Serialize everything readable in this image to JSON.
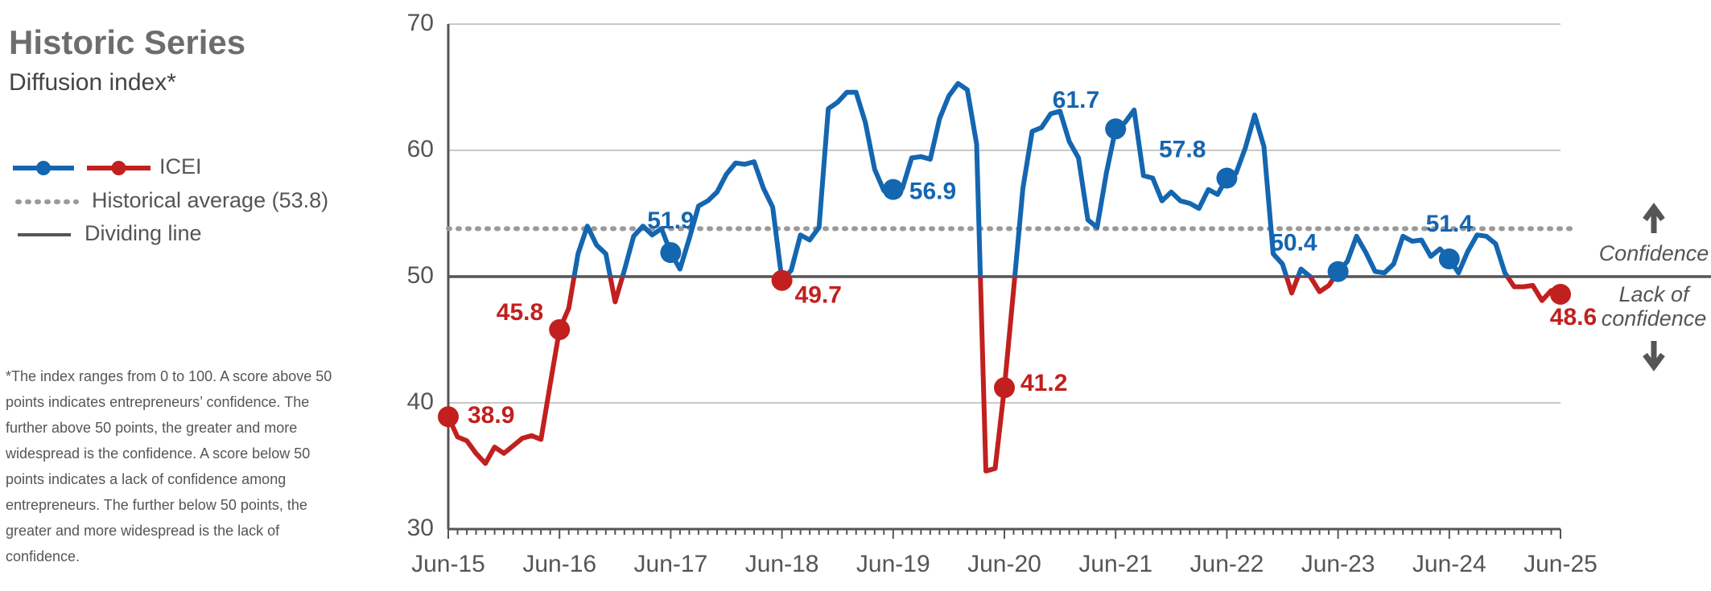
{
  "chart_data": {
    "type": "line",
    "title": "Historic Series",
    "subtitle": "Diffusion index*",
    "footnote": "*The index ranges from 0 to 100. A score above 50 points indicates entrepreneurs’ confidence. The further above 50 points, the greater and more widespread is the confidence. A score below 50 points indicates a lack of confidence among entrepreneurs. The further below 50 points, the greater and more widespread is the lack of confidence.",
    "categories": [
      "Jun-15",
      null,
      null,
      null,
      null,
      null,
      null,
      null,
      null,
      null,
      null,
      null,
      "Jun-16",
      null,
      null,
      null,
      null,
      null,
      null,
      null,
      null,
      null,
      null,
      null,
      "Jun-17",
      null,
      null,
      null,
      null,
      null,
      null,
      null,
      null,
      null,
      null,
      null,
      "Jun-18",
      null,
      null,
      null,
      null,
      null,
      null,
      null,
      null,
      null,
      null,
      null,
      "Jun-19",
      null,
      null,
      null,
      null,
      null,
      null,
      null,
      null,
      null,
      null,
      null,
      "Jun-20",
      null,
      null,
      null,
      null,
      null,
      null,
      null,
      null,
      null,
      null,
      null,
      "Jun-21",
      null,
      null,
      null,
      null,
      null,
      null,
      null,
      null,
      null,
      null,
      null,
      "Jun-22",
      null,
      null,
      null,
      null,
      null,
      null,
      null,
      null,
      null,
      null,
      null,
      "Jun-23",
      null,
      null,
      null,
      null,
      null,
      null,
      null,
      null,
      null,
      null,
      null,
      "Jun-24",
      null,
      null,
      null,
      null,
      null,
      null,
      null,
      null,
      null,
      null,
      null,
      "Jun-25"
    ],
    "series": [
      {
        "name": "ICEI",
        "color": "#1466b0",
        "color_below": "#c1201f",
        "values": [
          38.9,
          37.3,
          37.0,
          36.0,
          35.2,
          36.5,
          36.0,
          36.6,
          37.2,
          37.4,
          37.1,
          41.5,
          45.8,
          47.5,
          51.8,
          54.0,
          52.5,
          51.8,
          48.0,
          50.5,
          53.2,
          54.0,
          53.3,
          53.8,
          51.9,
          50.6,
          53.0,
          55.6,
          56.0,
          56.7,
          58.1,
          59.0,
          58.9,
          59.1,
          57.0,
          55.5,
          49.7,
          50.5,
          53.3,
          52.9,
          53.9,
          63.3,
          63.8,
          64.6,
          64.6,
          62.2,
          58.5,
          56.8,
          56.9,
          57.0,
          59.4,
          59.5,
          59.3,
          62.5,
          64.3,
          65.3,
          64.8,
          60.5,
          34.6,
          34.8,
          41.2,
          49.0,
          57.0,
          61.5,
          61.8,
          62.9,
          63.1,
          60.7,
          59.4,
          54.5,
          53.9,
          58.2,
          61.7,
          62.2,
          63.2,
          58.0,
          57.8,
          56.0,
          56.7,
          56.0,
          55.8,
          55.4,
          56.9,
          56.5,
          57.8,
          58.2,
          60.2,
          62.8,
          60.3,
          51.8,
          51.0,
          48.7,
          50.6,
          50.0,
          48.8,
          49.3,
          50.4,
          51.2,
          53.2,
          51.9,
          50.4,
          50.3,
          51.0,
          53.2,
          52.8,
          52.9,
          51.6,
          52.2,
          51.4,
          50.3,
          52.0,
          53.3,
          53.2,
          52.6,
          50.3,
          49.2,
          49.2,
          49.3,
          48.1,
          48.9,
          48.6
        ]
      }
    ],
    "reference_lines": [
      {
        "name": "Historical average (53.8)",
        "value": 53.8,
        "color": "#9a9a9a",
        "style": "dotted"
      },
      {
        "name": "Dividing line",
        "value": 50,
        "color": "#555555",
        "style": "solid"
      }
    ],
    "annotations": {
      "above": "Confidence",
      "below": [
        "Lack of",
        "confidence"
      ]
    },
    "ylim": [
      30,
      70
    ],
    "yticks": [
      30,
      40,
      50,
      60,
      70
    ],
    "grid": true
  }
}
